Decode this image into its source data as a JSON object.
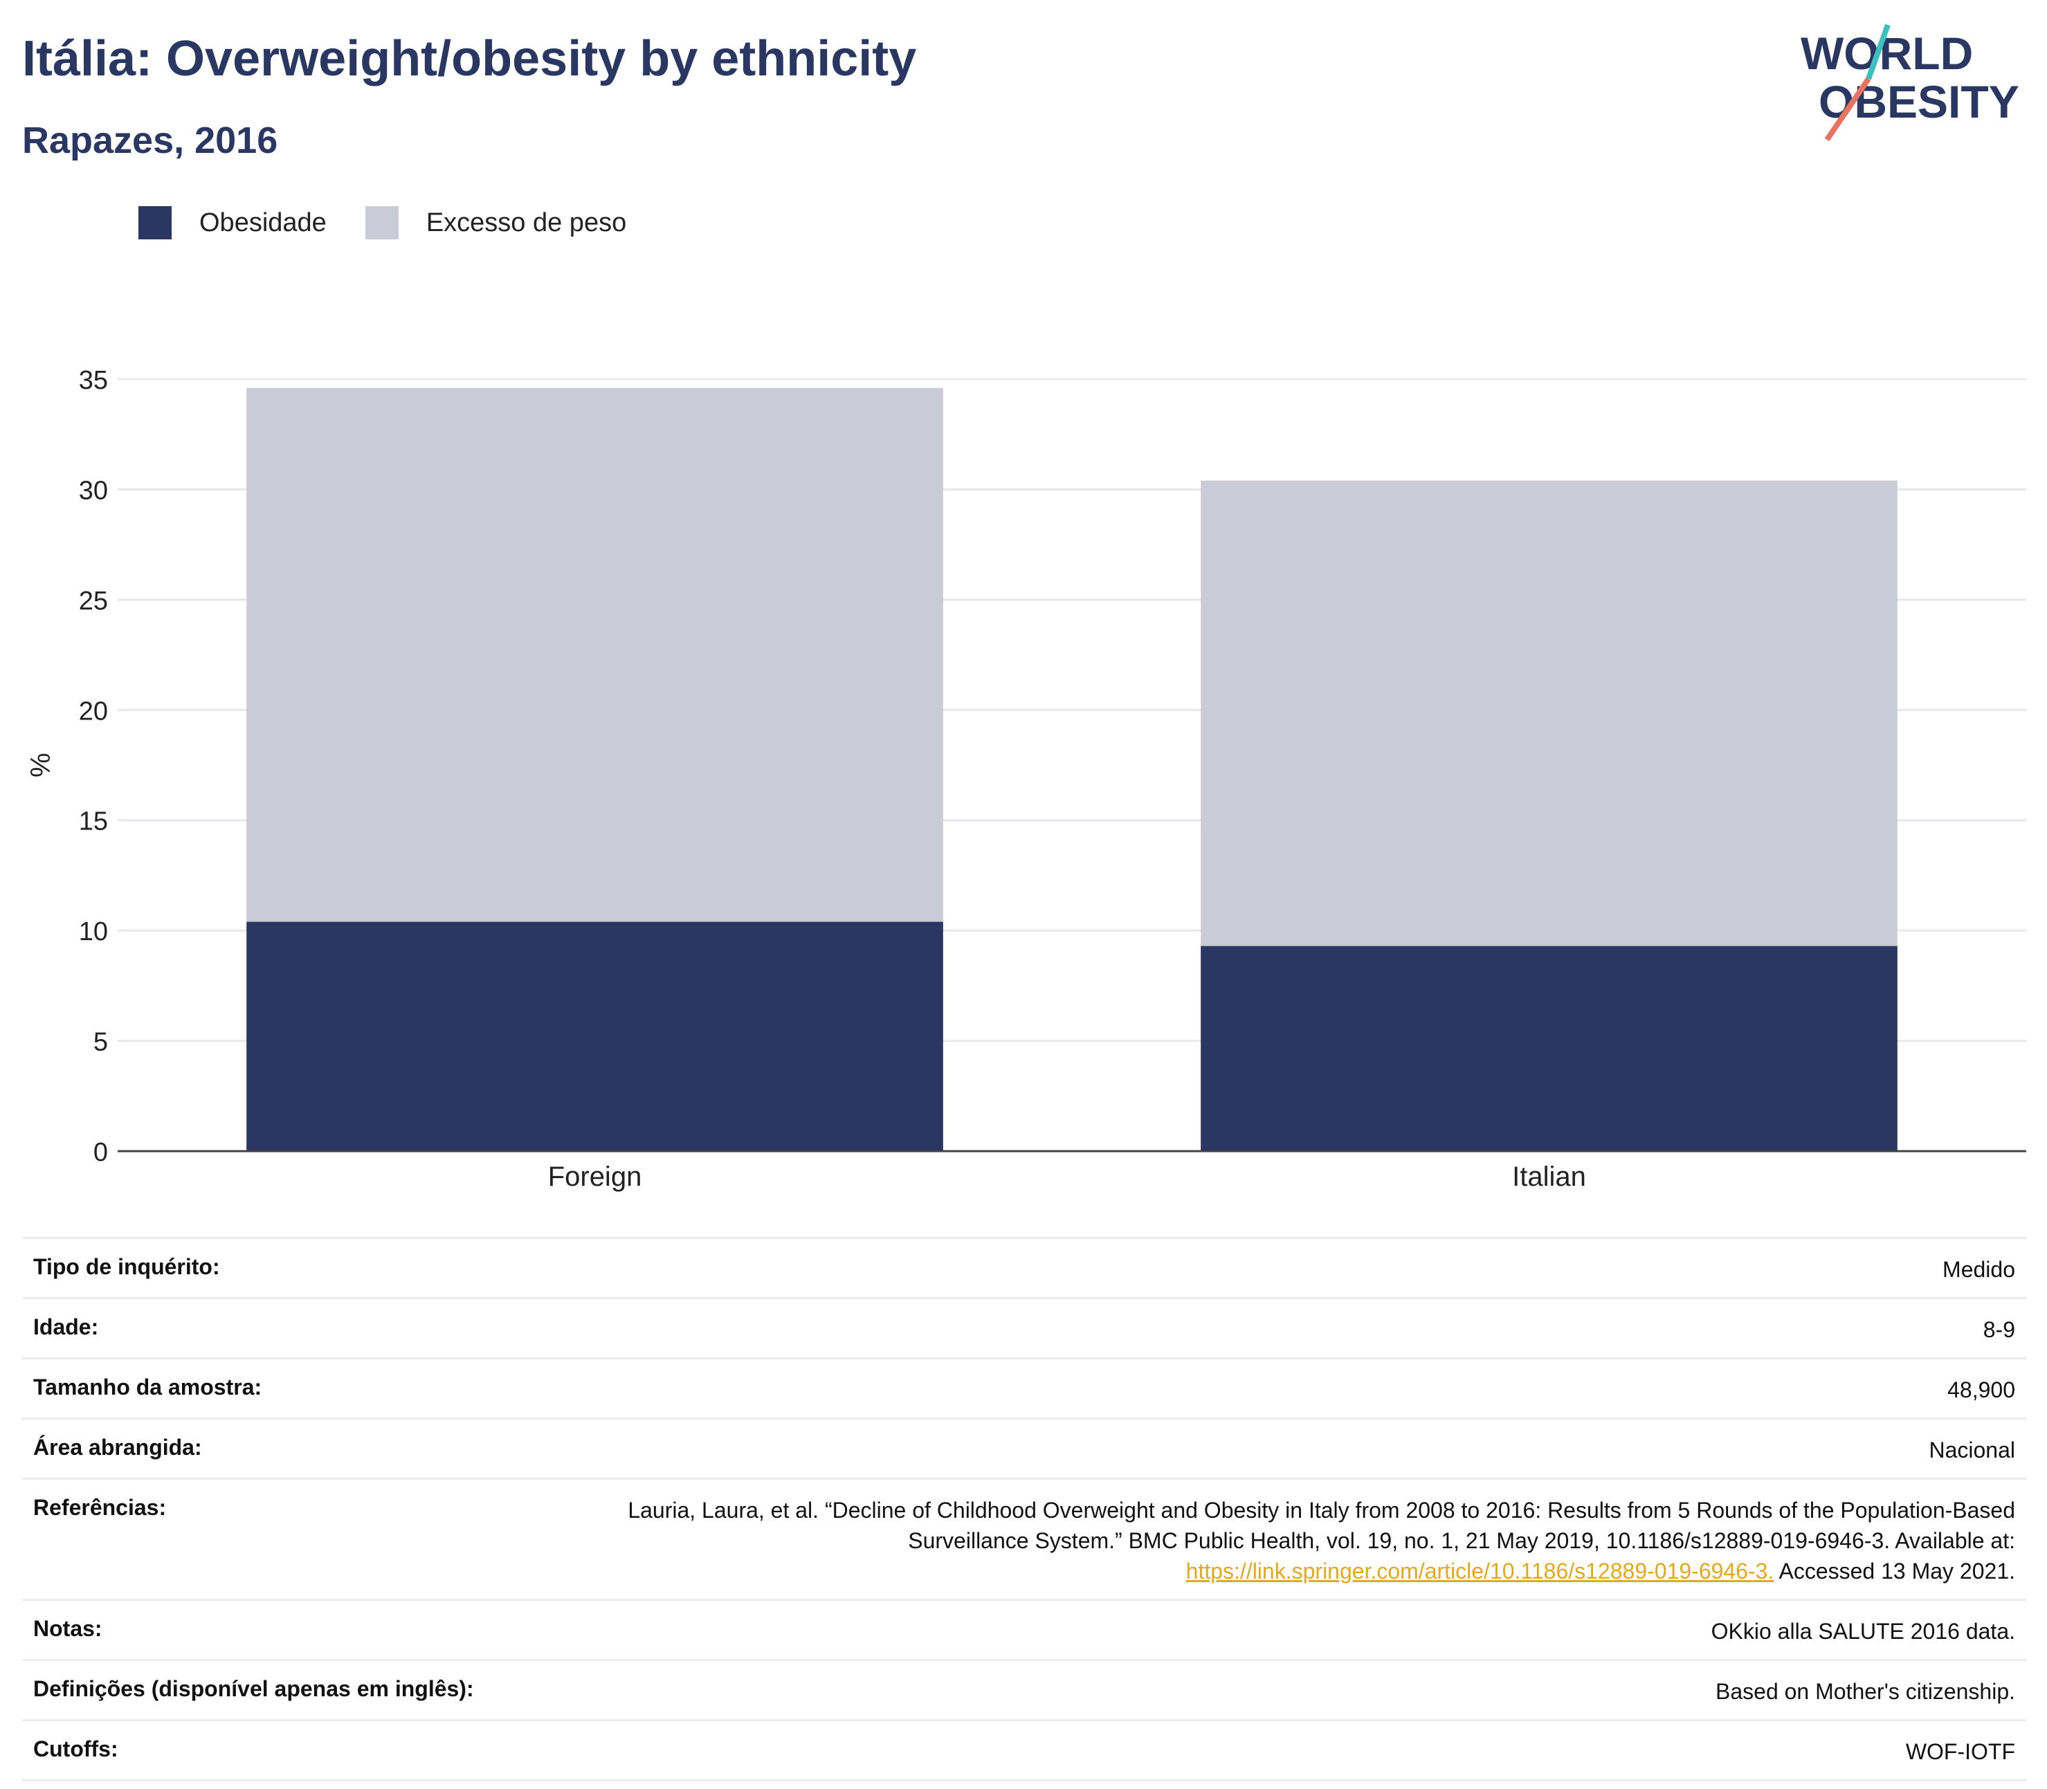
{
  "header": {
    "title": "Itália: Overweight/obesity by ethnicity",
    "subtitle": "Rapazes, 2016",
    "logo_line1": "WORLD",
    "logo_line2": "OBESITY"
  },
  "colors": {
    "obesity": "#2a3763",
    "overweight": "#c9cbd6",
    "title": "#2a3763",
    "link": "#e3a91c",
    "logo_teal": "#3bbfbf",
    "logo_coral": "#e8735e"
  },
  "chart_data": {
    "type": "bar",
    "stacked": true,
    "categories": [
      "Foreign",
      "Italian"
    ],
    "series": [
      {
        "name": "Obesidade",
        "values": [
          10.4,
          9.3
        ]
      },
      {
        "name": "Excesso de peso",
        "values": [
          24.2,
          21.1
        ]
      }
    ],
    "totals": [
      34.6,
      30.4
    ],
    "ylabel": "%",
    "xlabel": "",
    "ylim": [
      0,
      35
    ],
    "yticks": [
      0,
      5,
      10,
      15,
      20,
      25,
      30,
      35
    ],
    "grid": true,
    "legend_position": "top-left"
  },
  "metadata": [
    {
      "label": "Tipo de inquérito:",
      "value": "Medido"
    },
    {
      "label": "Idade:",
      "value": "8-9"
    },
    {
      "label": "Tamanho da amostra:",
      "value": "48,900"
    },
    {
      "label": "Área abrangida:",
      "value": "Nacional"
    },
    {
      "label": "Referências:",
      "value": "Lauria, Laura, et al. “Decline of Childhood Overweight and Obesity in Italy from 2008 to 2016: Results from 5 Rounds of the Population-Based Surveillance System.” BMC Public Health, vol. 19, no. 1, 21 May 2019, 10.1186/s12889-019-6946-3. Available at:",
      "link": "https://link.springer.com/article/10.1186/s12889-019-6946-3.",
      "suffix": "Accessed 13 May 2021."
    },
    {
      "label": "Notas:",
      "value": "OKkio alla SALUTE 2016 data."
    },
    {
      "label": "Definições (disponível apenas em inglês):",
      "value": "Based on Mother's citizenship."
    },
    {
      "label": "Cutoffs:",
      "value": "WOF-IOTF"
    }
  ]
}
